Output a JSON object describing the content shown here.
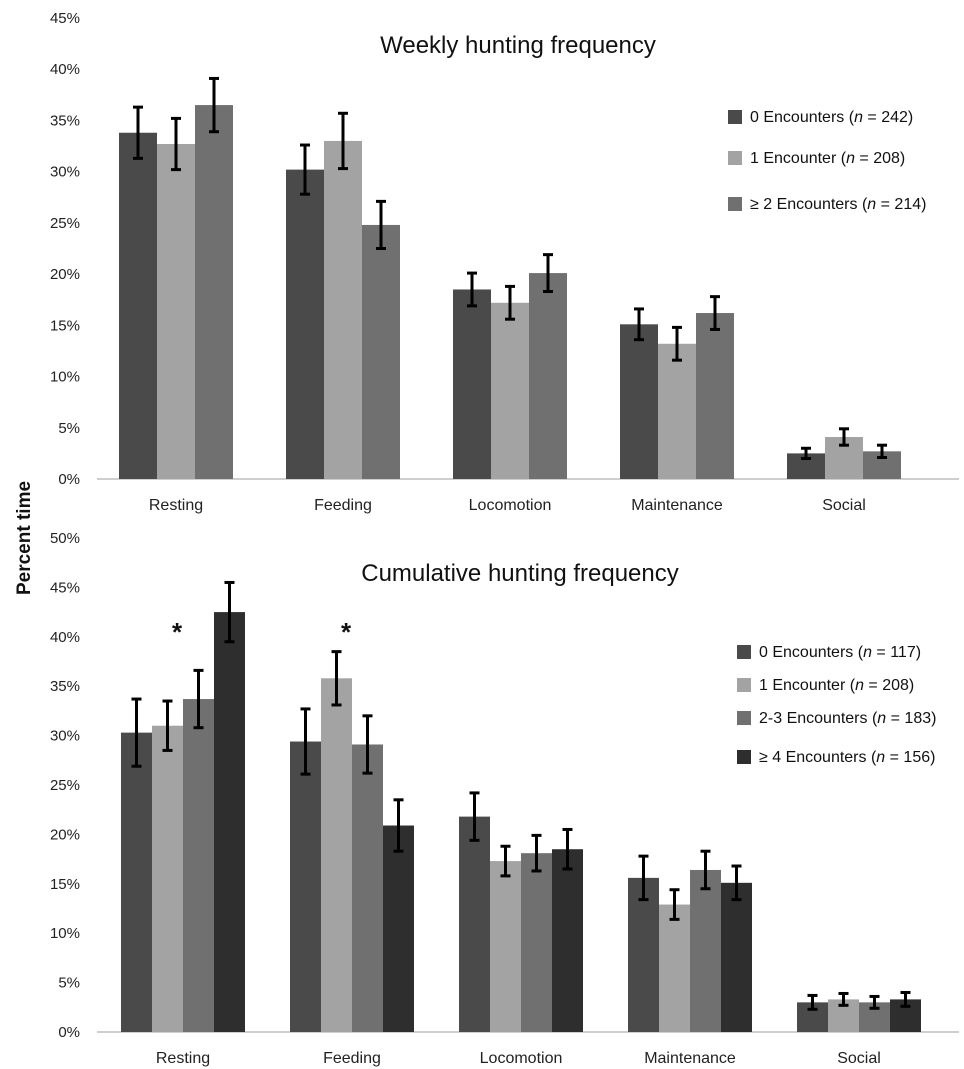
{
  "figure": {
    "ylabel": "Percent time"
  },
  "chart_data": [
    {
      "type": "bar",
      "title": "Weekly hunting frequency",
      "categories": [
        "Resting",
        "Feeding",
        "Locomotion",
        "Maintenance",
        "Social"
      ],
      "ylim": [
        0,
        45
      ],
      "yticks": [
        "0%",
        "5%",
        "10%",
        "15%",
        "20%",
        "25%",
        "30%",
        "35%",
        "40%",
        "45%"
      ],
      "legend_position": "right",
      "series": [
        {
          "name": "0 Encounters",
          "n_prefix": "(",
          "n_italic": "n",
          "n_suffix": " = 242)",
          "color": "#4a4a4a",
          "values": [
            33.8,
            30.2,
            18.5,
            15.1,
            2.5
          ],
          "errors": [
            2.5,
            2.4,
            1.6,
            1.5,
            0.5
          ]
        },
        {
          "name": "1 Encounter",
          "n_prefix": "(",
          "n_italic": "n",
          "n_suffix": " = 208)",
          "color": "#a3a3a3",
          "values": [
            32.7,
            33.0,
            17.2,
            13.2,
            4.1
          ],
          "errors": [
            2.5,
            2.7,
            1.6,
            1.6,
            0.8
          ]
        },
        {
          "name": "≥ 2 Encounters",
          "n_prefix": "(",
          "n_italic": "n",
          "n_suffix": " = 214)",
          "color": "#707070",
          "values": [
            36.5,
            24.8,
            20.1,
            16.2,
            2.7
          ],
          "errors": [
            2.6,
            2.3,
            1.8,
            1.6,
            0.6
          ]
        }
      ],
      "annotations": []
    },
    {
      "type": "bar",
      "title": "Cumulative hunting frequency",
      "categories": [
        "Resting",
        "Feeding",
        "Locomotion",
        "Maintenance",
        "Social"
      ],
      "ylim": [
        0,
        50
      ],
      "yticks": [
        "0%",
        "5%",
        "10%",
        "15%",
        "20%",
        "25%",
        "30%",
        "35%",
        "40%",
        "45%",
        "50%"
      ],
      "legend_position": "right",
      "series": [
        {
          "name": "0 Encounters",
          "n_prefix": "(",
          "n_italic": "n",
          "n_suffix": " = 117)",
          "color": "#4a4a4a",
          "values": [
            30.3,
            29.4,
            21.8,
            15.6,
            3.0
          ],
          "errors": [
            3.4,
            3.3,
            2.4,
            2.2,
            0.7
          ]
        },
        {
          "name": "1 Encounter",
          "n_prefix": "(",
          "n_italic": "n",
          "n_suffix": " = 208)",
          "color": "#a3a3a3",
          "values": [
            31.0,
            35.8,
            17.3,
            12.9,
            3.3
          ],
          "errors": [
            2.5,
            2.7,
            1.5,
            1.5,
            0.6
          ]
        },
        {
          "name": "2-3 Encounters",
          "n_prefix": "(",
          "n_italic": "n",
          "n_suffix": " = 183)",
          "color": "#707070",
          "values": [
            33.7,
            29.1,
            18.1,
            16.4,
            3.0
          ],
          "errors": [
            2.9,
            2.9,
            1.8,
            1.9,
            0.6
          ]
        },
        {
          "name": "≥ 4 Encounters",
          "n_prefix": "(",
          "n_italic": "n",
          "n_suffix": " = 156)",
          "color": "#2e2e2e",
          "values": [
            42.5,
            20.9,
            18.5,
            15.1,
            3.3
          ],
          "errors": [
            3.0,
            2.6,
            2.0,
            1.7,
            0.7
          ]
        }
      ],
      "annotations": [
        {
          "text": "*",
          "category": "Resting"
        },
        {
          "text": "*",
          "category": "Feeding"
        }
      ]
    }
  ]
}
